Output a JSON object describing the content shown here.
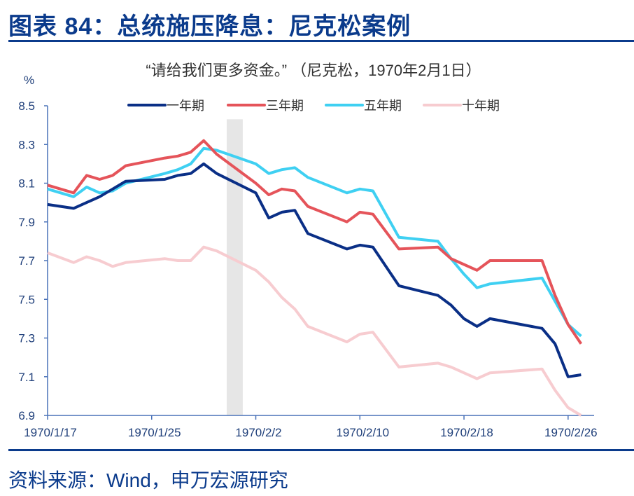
{
  "header": {
    "title": "图表 84：总统施压降息：尼克松案例"
  },
  "footer": {
    "source": "资料来源：Wind，申万宏源研究"
  },
  "chart_data": {
    "type": "line",
    "title": "“请给我们更多资金。”  （尼克松，1970年2月1日）",
    "ylabel": "%",
    "xlabel": "",
    "ylim": [
      6.9,
      8.5
    ],
    "yticks": [
      "6.9",
      "7.1",
      "7.3",
      "7.5",
      "7.7",
      "7.9",
      "8.1",
      "8.3",
      "8.5"
    ],
    "xlim": [
      "1970-01-17",
      "1970-02-28"
    ],
    "xticks": [
      "1970/1/17",
      "1970/1/25",
      "1970/2/2",
      "1970/2/10",
      "1970/2/18",
      "1970/2/26"
    ],
    "grid": false,
    "legend_position": "top-center",
    "highlight_band": {
      "date": "1970-02-01",
      "label": "尼克松，1970年2月1日",
      "color": "#e6e6e6"
    },
    "x": [
      "1970-01-17",
      "1970-01-19",
      "1970-01-20",
      "1970-01-21",
      "1970-01-22",
      "1970-01-23",
      "1970-01-26",
      "1970-01-27",
      "1970-01-28",
      "1970-01-29",
      "1970-01-30",
      "1970-02-02",
      "1970-02-03",
      "1970-02-04",
      "1970-02-05",
      "1970-02-06",
      "1970-02-09",
      "1970-02-10",
      "1970-02-11",
      "1970-02-13",
      "1970-02-16",
      "1970-02-17",
      "1970-02-18",
      "1970-02-19",
      "1970-02-20",
      "1970-02-24",
      "1970-02-25",
      "1970-02-26",
      "1970-02-27"
    ],
    "series": [
      {
        "name": "一年期",
        "color": "#0a2f86",
        "values": [
          7.99,
          7.97,
          8.0,
          8.03,
          8.07,
          8.11,
          8.12,
          8.14,
          8.15,
          8.2,
          8.15,
          8.05,
          7.92,
          7.95,
          7.96,
          7.84,
          7.76,
          7.78,
          7.77,
          7.57,
          7.52,
          7.47,
          7.4,
          7.36,
          7.4,
          7.35,
          7.27,
          7.1,
          7.11
        ]
      },
      {
        "name": "三年期",
        "color": "#e5545a",
        "values": [
          8.09,
          8.05,
          8.14,
          8.12,
          8.14,
          8.19,
          8.23,
          8.24,
          8.26,
          8.32,
          8.25,
          8.1,
          8.04,
          8.07,
          8.06,
          7.98,
          7.9,
          7.95,
          7.94,
          7.76,
          7.77,
          7.71,
          7.68,
          7.65,
          7.7,
          7.7,
          7.52,
          7.37,
          7.27
        ]
      },
      {
        "name": "五年期",
        "color": "#3fd0f2",
        "values": [
          8.07,
          8.03,
          8.08,
          8.05,
          8.06,
          8.1,
          8.15,
          8.17,
          8.2,
          8.28,
          8.27,
          8.2,
          8.15,
          8.17,
          8.18,
          8.13,
          8.05,
          8.07,
          8.06,
          7.82,
          7.8,
          7.71,
          7.63,
          7.56,
          7.58,
          7.61,
          7.49,
          7.37,
          7.31
        ]
      },
      {
        "name": "十年期",
        "color": "#f7ccd0",
        "values": [
          7.74,
          7.69,
          7.72,
          7.7,
          7.67,
          7.69,
          7.71,
          7.7,
          7.7,
          7.77,
          7.75,
          7.65,
          7.59,
          7.51,
          7.45,
          7.36,
          7.28,
          7.32,
          7.33,
          7.15,
          7.17,
          7.15,
          7.12,
          7.09,
          7.12,
          7.14,
          7.03,
          6.94,
          6.9
        ]
      }
    ]
  }
}
